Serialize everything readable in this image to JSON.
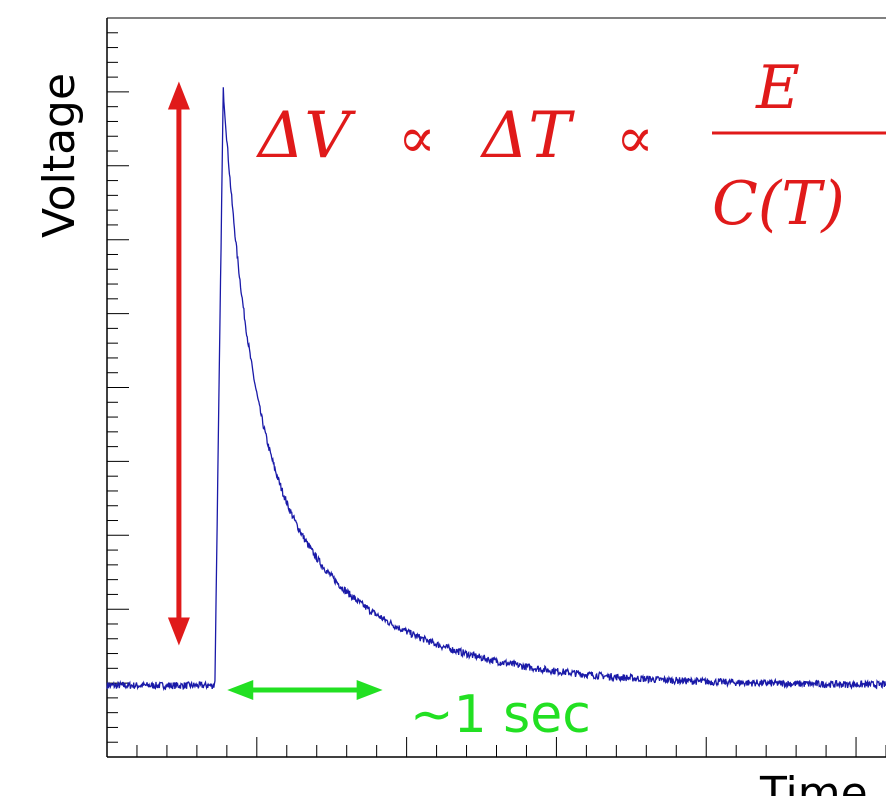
{
  "chart_data": {
    "type": "line",
    "title": "",
    "xlabel": "Time",
    "ylabel": "Voltage",
    "xlim": [
      0,
      6.5
    ],
    "ylim": [
      -0.12,
      1.12
    ],
    "grid": false,
    "tick_labels_shown": false,
    "pulse_model": {
      "baseline": 0,
      "baseline_noise": 0.006,
      "onset": 0.9,
      "rise_end": 0.97,
      "peak": 1.0,
      "fast_decay_tau": 0.22,
      "slow_decay_tau": 0.95,
      "fast_fraction": 0.55
    },
    "series": [
      {
        "color": "#1a1aa8"
      }
    ],
    "annotations": {
      "formula": {
        "dV": "ΔV",
        "prop1": "∝",
        "dT": "ΔT",
        "prop2": "∝",
        "numerator": "E",
        "denominator": "C(T)",
        "color": "#e01a1a"
      },
      "amplitude_arrow": {
        "color": "#e01a1a",
        "from_y": 0,
        "to_y": 1.0,
        "x": 0.6
      },
      "time_arrow": {
        "color": "#22e022",
        "from_x": 0.97,
        "to_x": 2.3,
        "y": -0.05,
        "label": "~1 sec"
      }
    }
  }
}
